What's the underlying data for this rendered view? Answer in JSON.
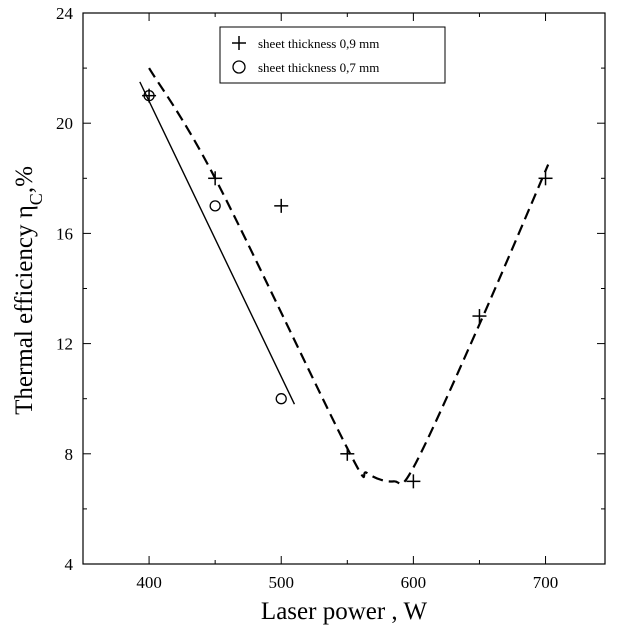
{
  "chart_data": {
    "type": "scatter",
    "title": "",
    "xlabel": "Laser power , W",
    "ylabel": "Thermal efficiency η",
    "ylabel_subscript": "C",
    "ylabel_suffix": ",%",
    "xlim": [
      350,
      745
    ],
    "ylim": [
      4,
      24
    ],
    "xticks": [
      400,
      500,
      600,
      700
    ],
    "yticks": [
      4,
      8,
      12,
      16,
      20,
      24
    ],
    "grid": false,
    "legend_position": "top-center",
    "series": [
      {
        "name": "sheet thickness 0,9 mm",
        "marker": "plus",
        "points": [
          {
            "x": 400,
            "y": 21
          },
          {
            "x": 450,
            "y": 18
          },
          {
            "x": 500,
            "y": 17
          },
          {
            "x": 550,
            "y": 8
          },
          {
            "x": 600,
            "y": 7
          },
          {
            "x": 650,
            "y": 13
          },
          {
            "x": 700,
            "y": 18
          }
        ],
        "trend": {
          "style": "dashed",
          "points": [
            {
              "x": 400,
              "y": 22
            },
            {
              "x": 450,
              "y": 18
            },
            {
              "x": 550,
              "y": 8.2
            },
            {
              "x": 565,
              "y": 7.3
            },
            {
              "x": 585,
              "y": 7
            },
            {
              "x": 600,
              "y": 7.5
            },
            {
              "x": 650,
              "y": 12.7
            },
            {
              "x": 702,
              "y": 18.5
            }
          ]
        }
      },
      {
        "name": "sheet thickness 0,7 mm",
        "marker": "circle",
        "points": [
          {
            "x": 400,
            "y": 21
          },
          {
            "x": 450,
            "y": 17
          },
          {
            "x": 500,
            "y": 10
          }
        ],
        "trend": {
          "style": "solid",
          "points": [
            {
              "x": 393,
              "y": 21.5
            },
            {
              "x": 510,
              "y": 9.8
            }
          ]
        }
      }
    ]
  }
}
